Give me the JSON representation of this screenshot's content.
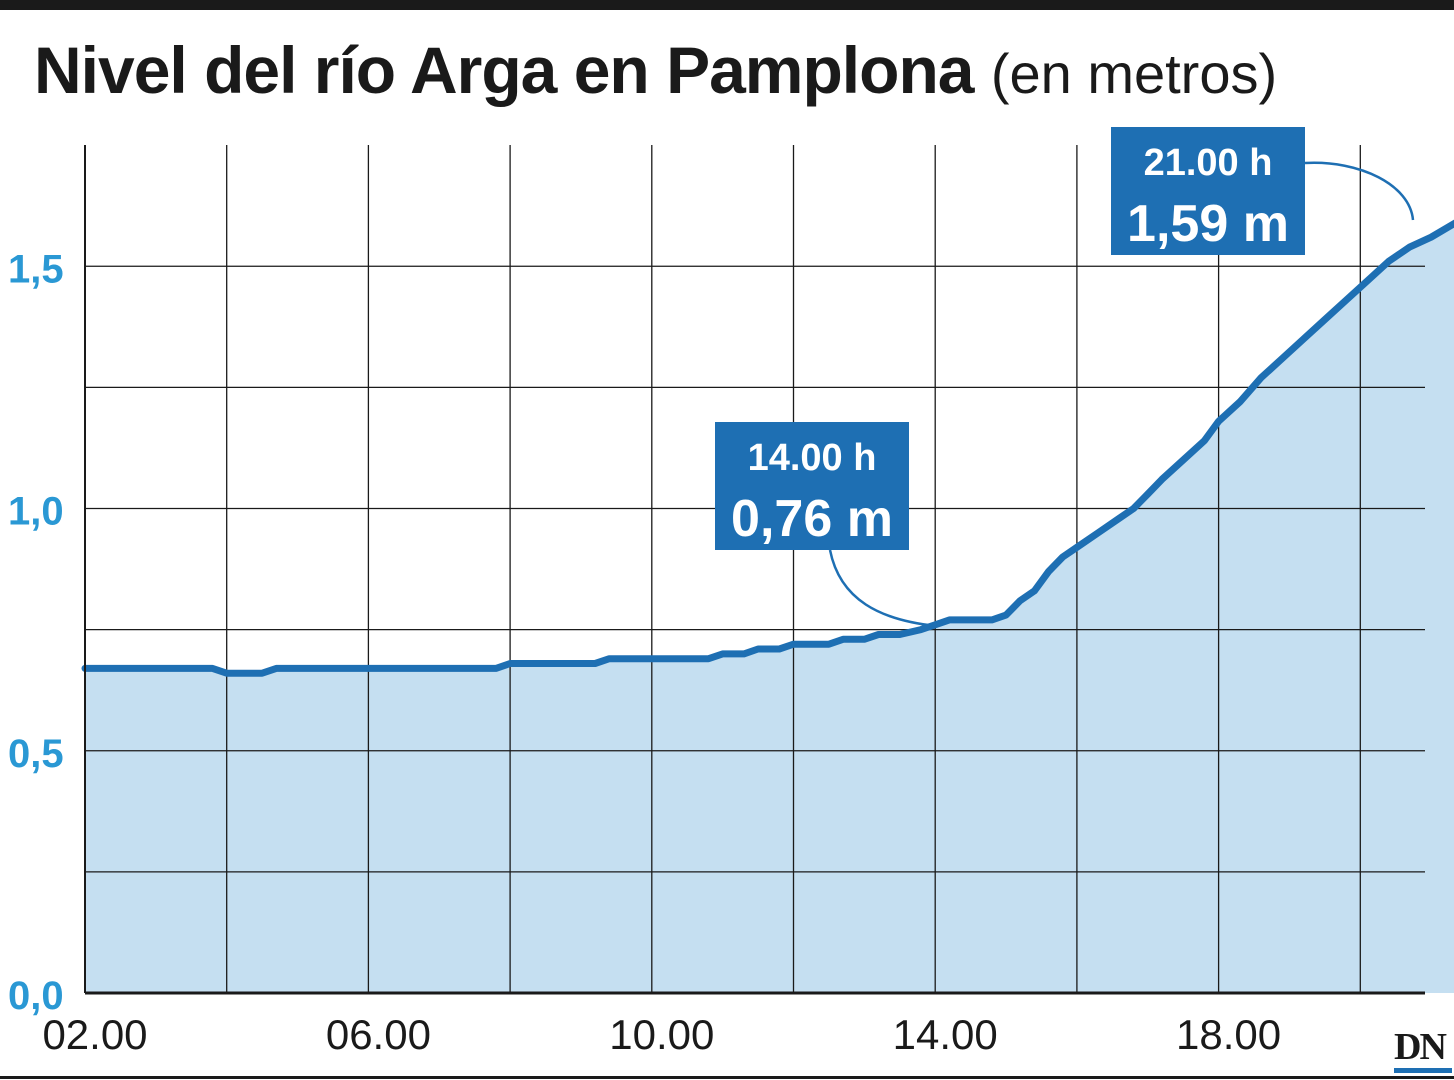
{
  "title": {
    "main": "Nivel del río Arga en Pamplona",
    "unit": "(en metros)"
  },
  "logo": {
    "text": "DN"
  },
  "colors": {
    "line": "#1e6fb3",
    "fill": "#c5dff1",
    "y_tick_labels": "#2a98d4",
    "callout_bg": "#1e6fb3",
    "grid": "#1a1a1a"
  },
  "chart_data": {
    "type": "area",
    "title": "Nivel del río Arga en Pamplona",
    "ylabel": "",
    "xlabel": "",
    "unit": "(en metros)",
    "xlim": [
      2,
      21.4
    ],
    "ylim": [
      0,
      1.75
    ],
    "grid": true,
    "x_ticks": [
      2,
      6,
      10,
      14,
      18
    ],
    "x_tick_labels": [
      "02.00",
      "06.00",
      "10.00",
      "14.00",
      "18.00"
    ],
    "x_gridlines": [
      2,
      4,
      6,
      8,
      10,
      12,
      14,
      16,
      18,
      20
    ],
    "y_ticks": [
      0,
      0.5,
      1.0,
      1.5
    ],
    "y_tick_labels": [
      "0,0",
      "0,5",
      "1,0",
      "1,5"
    ],
    "y_gridlines": [
      0,
      0.25,
      0.5,
      0.75,
      1.0,
      1.25,
      1.5
    ],
    "series": [
      {
        "x": [
          2,
          3.0,
          3.8,
          4.0,
          4.2,
          4.5,
          4.7,
          5.0,
          6.0,
          7.0,
          7.8,
          8.0,
          8.5,
          9.0,
          9.2,
          9.4,
          10.0,
          10.6,
          10.8,
          11.0,
          11.3,
          11.5,
          11.8,
          12.0,
          12.5,
          12.7,
          13.0,
          13.2,
          13.5,
          13.8,
          14.0,
          14.2,
          14.5,
          14.8,
          15.0,
          15.2,
          15.4,
          15.6,
          15.8,
          16.0,
          16.3,
          16.6,
          16.8,
          17.0,
          17.2,
          17.5,
          17.8,
          18.0,
          18.3,
          18.6,
          18.9,
          19.2,
          19.5,
          19.8,
          20.1,
          20.4,
          20.7,
          21.0,
          21.35
        ],
        "y": [
          0.67,
          0.67,
          0.67,
          0.66,
          0.66,
          0.66,
          0.67,
          0.67,
          0.67,
          0.67,
          0.67,
          0.68,
          0.68,
          0.68,
          0.68,
          0.69,
          0.69,
          0.69,
          0.69,
          0.7,
          0.7,
          0.71,
          0.71,
          0.72,
          0.72,
          0.73,
          0.73,
          0.74,
          0.74,
          0.75,
          0.76,
          0.77,
          0.77,
          0.77,
          0.78,
          0.81,
          0.83,
          0.87,
          0.9,
          0.92,
          0.95,
          0.98,
          1.0,
          1.03,
          1.06,
          1.1,
          1.14,
          1.18,
          1.22,
          1.27,
          1.31,
          1.35,
          1.39,
          1.43,
          1.47,
          1.51,
          1.54,
          1.56,
          1.59
        ]
      }
    ],
    "annotations": [
      {
        "time": "14.00 h",
        "value": "0,76 m",
        "x": 14,
        "y": 0.76
      },
      {
        "time": "21.00 h",
        "value": "1,59 m",
        "x": 21.35,
        "y": 1.59
      }
    ]
  }
}
